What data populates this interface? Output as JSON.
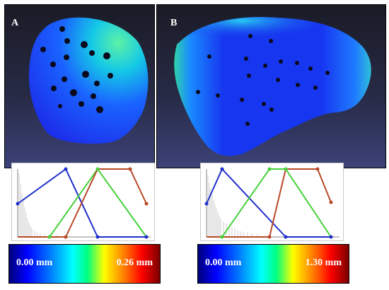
{
  "figure": {
    "panels": [
      {
        "letter": "A"
      },
      {
        "letter": "B"
      }
    ],
    "colorbars": [
      {
        "min_label": "0.00 mm",
        "max_label": "0.26 mm"
      },
      {
        "min_label": "0.00 mm",
        "max_label": "1.30 mm"
      }
    ]
  },
  "colors": {
    "background": "#ffffff",
    "panel_background": "#262a45",
    "curve_blue": "#1f2fcc",
    "curve_green": "#45d23a",
    "curve_red": "#b84a28"
  }
}
